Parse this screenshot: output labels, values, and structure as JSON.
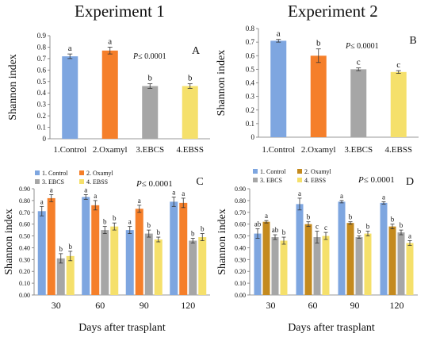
{
  "figure": {
    "experiment1_title": "Experiment 1",
    "experiment2_title": "Experiment 2"
  },
  "chart_data": [
    {
      "panel": "A",
      "type": "bar",
      "ylabel": "Shannon index",
      "xlabel": "",
      "annotation": "P≤ 0.0001",
      "ylim": [
        0,
        0.9
      ],
      "yticks": [
        "0",
        "0.1",
        "0.2",
        "0.3",
        "0.4",
        "0.5",
        "0.6",
        "0.7",
        "0.8",
        "0.9"
      ],
      "categories": [
        "1.Control",
        "2.Oxamyl",
        "3.EBCS",
        "4.EBSS"
      ],
      "values": [
        0.72,
        0.77,
        0.46,
        0.46
      ],
      "errors": [
        0.02,
        0.03,
        0.02,
        0.02
      ],
      "letters": [
        "a",
        "a",
        "b",
        "b"
      ],
      "colors": [
        "#7ea6e0",
        "#f57f2a",
        "#a6a6a6",
        "#f5e06b"
      ]
    },
    {
      "panel": "B",
      "type": "bar",
      "ylabel": "Shannon index",
      "xlabel": "",
      "annotation": "P≤ 0.0001",
      "ylim": [
        0,
        0.8
      ],
      "yticks": [
        "0",
        "0.1",
        "0.2",
        "0.3",
        "0.4",
        "0.5",
        "0.6",
        "0.7",
        "0.8"
      ],
      "categories": [
        "1.Control",
        "2.Oxamyl",
        "3.EBCS",
        "4.EBSS"
      ],
      "values": [
        0.71,
        0.6,
        0.5,
        0.48
      ],
      "errors": [
        0.01,
        0.05,
        0.01,
        0.01
      ],
      "letters": [
        "a",
        "b",
        "c",
        "c"
      ],
      "colors": [
        "#7ea6e0",
        "#f57f2a",
        "#a6a6a6",
        "#f5e06b"
      ]
    },
    {
      "panel": "C",
      "type": "bar",
      "ylabel": "Shannon index",
      "xlabel": "Days after trasplant",
      "annotation": "P≤ 0.0001",
      "ylim": [
        0,
        0.9
      ],
      "yticks": [
        "0.00",
        "0.10",
        "0.20",
        "0.30",
        "0.40",
        "0.50",
        "0.60",
        "0.70",
        "0.80",
        "0.90"
      ],
      "categories": [
        "30",
        "60",
        "90",
        "120"
      ],
      "legend": [
        "1. Control",
        "2. Oxamyl",
        "3. EBCS",
        "4. EBSS"
      ],
      "colors": [
        "#7ea6e0",
        "#f57f2a",
        "#a6a6a6",
        "#f5e06b"
      ],
      "series": [
        {
          "name": "1. Control",
          "values": [
            0.71,
            0.83,
            0.55,
            0.79
          ],
          "errors": [
            0.04,
            0.02,
            0.03,
            0.04
          ],
          "letters": [
            "a",
            "a",
            "a",
            "a"
          ]
        },
        {
          "name": "2. Oxamyl",
          "values": [
            0.82,
            0.76,
            0.73,
            0.78
          ],
          "errors": [
            0.03,
            0.04,
            0.03,
            0.04
          ],
          "letters": [
            "a",
            "a",
            "a",
            "a"
          ]
        },
        {
          "name": "3. EBCS",
          "values": [
            0.31,
            0.55,
            0.52,
            0.46
          ],
          "errors": [
            0.04,
            0.03,
            0.03,
            0.02
          ],
          "letters": [
            "b",
            "b",
            "b",
            "b"
          ]
        },
        {
          "name": "4. EBSS",
          "values": [
            0.33,
            0.58,
            0.47,
            0.49
          ],
          "errors": [
            0.04,
            0.03,
            0.02,
            0.03
          ],
          "letters": [
            "b",
            "b",
            "b",
            "b"
          ]
        }
      ]
    },
    {
      "panel": "D",
      "type": "bar",
      "ylabel": "Shannon index",
      "xlabel": "Days after trasplant",
      "annotation": "P≤ 0.0001",
      "ylim": [
        0,
        0.9
      ],
      "yticks": [
        "0.00",
        "0.10",
        "0.20",
        "0.30",
        "0.40",
        "0.50",
        "0.60",
        "0.70",
        "0.80",
        "0.90"
      ],
      "categories": [
        "30",
        "60",
        "90",
        "120"
      ],
      "legend": [
        "1. Control",
        "2. Oxamyl",
        "3. EBCS",
        "4. EBSS"
      ],
      "colors": [
        "#7ea6e0",
        "#c48a1e",
        "#a6a6a6",
        "#f5e06b"
      ],
      "series": [
        {
          "name": "1. Control",
          "values": [
            0.52,
            0.77,
            0.79,
            0.78
          ],
          "errors": [
            0.04,
            0.05,
            0.01,
            0.01
          ],
          "letters": [
            "ab",
            "a",
            "a",
            "a"
          ]
        },
        {
          "name": "2. Oxamyl",
          "values": [
            0.62,
            0.6,
            0.61,
            0.58
          ],
          "errors": [
            0.01,
            0.02,
            0.01,
            0.02
          ],
          "letters": [
            "a",
            "b",
            "b",
            "b"
          ]
        },
        {
          "name": "3. EBCS",
          "values": [
            0.49,
            0.49,
            0.49,
            0.53
          ],
          "errors": [
            0.02,
            0.05,
            0.01,
            0.02
          ],
          "letters": [
            "ab",
            "c",
            "b",
            "b"
          ]
        },
        {
          "name": "4. EBSS",
          "values": [
            0.46,
            0.5,
            0.52,
            0.44
          ],
          "errors": [
            0.03,
            0.03,
            0.02,
            0.02
          ],
          "letters": [
            "b",
            "c",
            "b",
            "a"
          ]
        }
      ]
    }
  ]
}
